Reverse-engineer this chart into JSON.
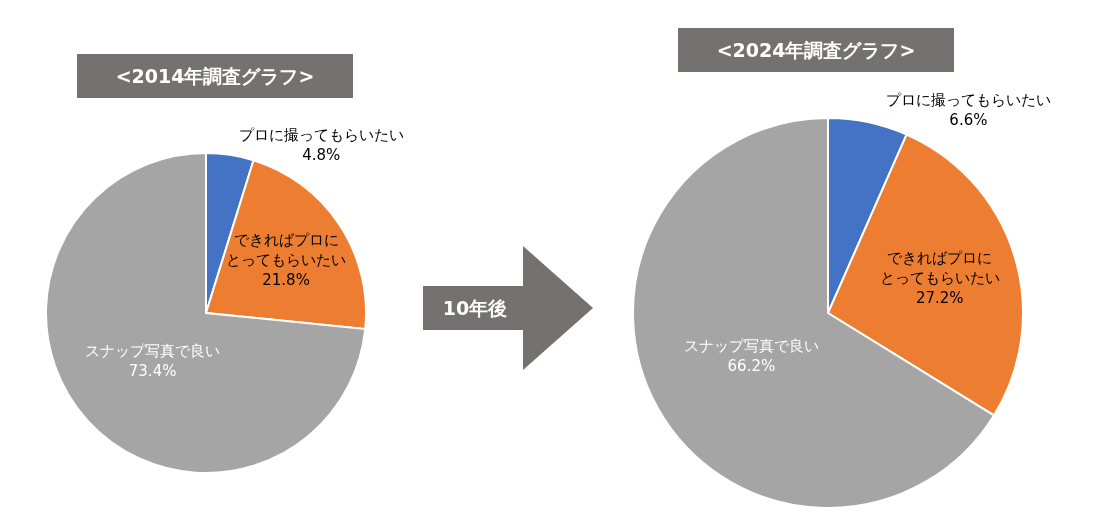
{
  "chart_data": [
    {
      "type": "pie",
      "title": "<2014年調査グラフ>",
      "categories": [
        "プロに撮ってもらいたい",
        "できればプロにとってもらいたい",
        "スナップ写真で良い"
      ],
      "values": [
        4.8,
        21.8,
        73.4
      ],
      "value_labels": [
        "4.8%",
        "21.8%",
        "73.4%"
      ],
      "colors": [
        "#4472c4",
        "#ed7d31",
        "#a5a5a5"
      ],
      "annotations": [
        "10年後"
      ]
    },
    {
      "type": "pie",
      "title": "<2024年調査グラフ>",
      "categories": [
        "プロに撮ってもらいたい",
        "できればプロにとってもらいたい",
        "スナップ写真で良い"
      ],
      "values": [
        6.6,
        27.2,
        66.2
      ],
      "value_labels": [
        "6.6%",
        "27.2%",
        "66.2%"
      ],
      "colors": [
        "#4472c4",
        "#ed7d31",
        "#a5a5a5"
      ]
    }
  ]
}
